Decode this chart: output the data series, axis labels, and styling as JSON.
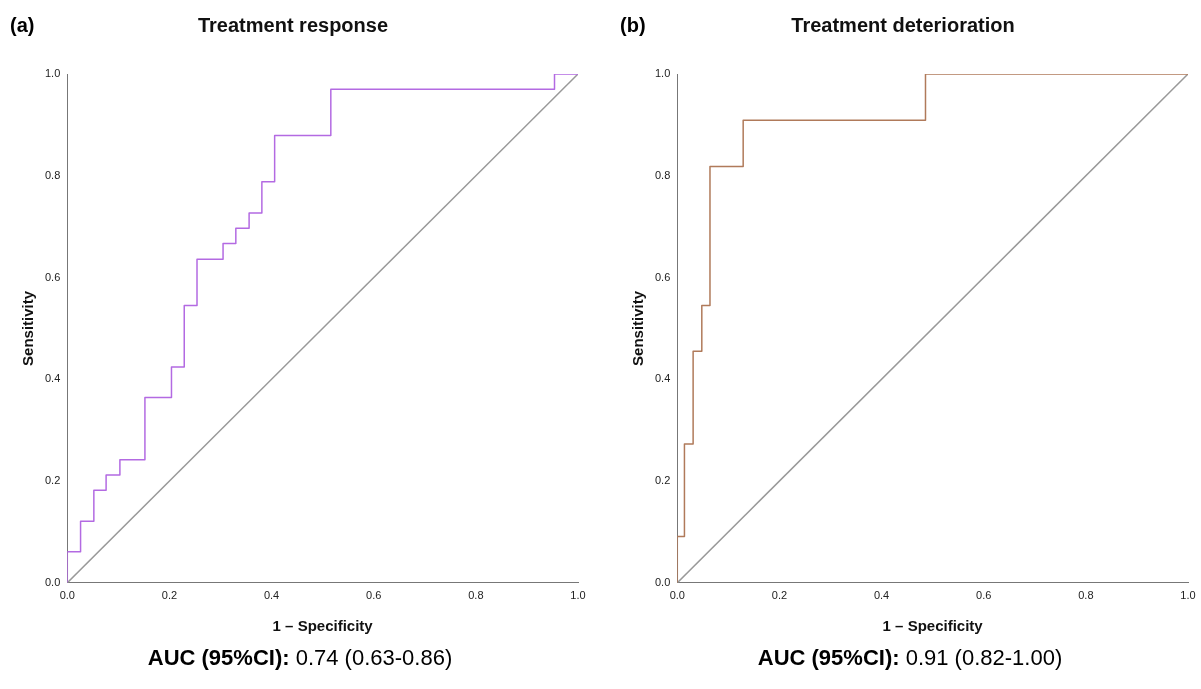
{
  "chart_data": [
    {
      "type": "line",
      "title": "Treatment response",
      "xlabel": "1 – Specificity",
      "ylabel": "Sensitivity",
      "xlim": [
        0,
        1
      ],
      "ylim": [
        0,
        1
      ],
      "xticks": [
        {
          "value": 0,
          "label": "0.0"
        },
        {
          "value": 0.2,
          "label": "0.2"
        },
        {
          "value": 0.4,
          "label": "0.4"
        },
        {
          "value": 0.6,
          "label": "0.6"
        },
        {
          "value": 0.8,
          "label": "0.8"
        },
        {
          "value": 1,
          "label": "1.0"
        }
      ],
      "yticks": [
        {
          "value": 0,
          "label": "0.0"
        },
        {
          "value": 0.2,
          "label": "0.2"
        },
        {
          "value": 0.4,
          "label": "0.4"
        },
        {
          "value": 0.6,
          "label": "0.6"
        },
        {
          "value": 0.8,
          "label": "0.8"
        },
        {
          "value": 1,
          "label": "1.0"
        }
      ],
      "marker": "none",
      "line_style": "solid",
      "series": [
        {
          "color": "#b36ae2",
          "x": [
            0,
            0,
            0.026,
            0.026,
            0.052,
            0.052,
            0.076,
            0.076,
            0.103,
            0.103,
            0.152,
            0.152,
            0.204,
            0.204,
            0.229,
            0.229,
            0.254,
            0.254,
            0.305,
            0.305,
            0.33,
            0.33,
            0.356,
            0.356,
            0.381,
            0.381,
            0.406,
            0.406,
            0.516,
            0.516,
            0.954,
            0.954,
            1
          ],
          "values": [
            0,
            0.061,
            0.061,
            0.121,
            0.121,
            0.182,
            0.182,
            0.212,
            0.212,
            0.242,
            0.242,
            0.364,
            0.364,
            0.424,
            0.424,
            0.545,
            0.545,
            0.636,
            0.636,
            0.667,
            0.667,
            0.697,
            0.697,
            0.727,
            0.727,
            0.788,
            0.788,
            0.879,
            0.879,
            0.97,
            0.97,
            1,
            1
          ]
        },
        {
          "color": "#999999",
          "x": [
            0,
            1
          ],
          "values": [
            0,
            1
          ]
        }
      ],
      "annotations": [
        "(a)",
        "AUC (95%CI): 0.74 (0.63-0.86)"
      ]
    },
    {
      "type": "line",
      "title": "Treatment deterioration",
      "xlabel": "1 – Specificity",
      "ylabel": "Sensitivity",
      "xlim": [
        0,
        1
      ],
      "ylim": [
        0,
        1
      ],
      "xticks": [
        {
          "value": 0,
          "label": "0.0"
        },
        {
          "value": 0.2,
          "label": "0.2"
        },
        {
          "value": 0.4,
          "label": "0.4"
        },
        {
          "value": 0.6,
          "label": "0.6"
        },
        {
          "value": 0.8,
          "label": "0.8"
        },
        {
          "value": 1,
          "label": "1.0"
        }
      ],
      "yticks": [
        {
          "value": 0,
          "label": "0.0"
        },
        {
          "value": 0.2,
          "label": "0.2"
        },
        {
          "value": 0.4,
          "label": "0.4"
        },
        {
          "value": 0.6,
          "label": "0.6"
        },
        {
          "value": 0.8,
          "label": "0.8"
        },
        {
          "value": 1,
          "label": "1.0"
        }
      ],
      "marker": "none",
      "line_style": "solid",
      "series": [
        {
          "color": "#b07a5a",
          "x": [
            0,
            0,
            0.014,
            0.014,
            0.031,
            0.031,
            0.048,
            0.048,
            0.064,
            0.064,
            0.129,
            0.129,
            0.486,
            0.486,
            1
          ],
          "values": [
            0,
            0.091,
            0.091,
            0.273,
            0.273,
            0.455,
            0.455,
            0.545,
            0.545,
            0.818,
            0.818,
            0.909,
            0.909,
            1,
            1
          ]
        },
        {
          "color": "#999999",
          "x": [
            0,
            1
          ],
          "values": [
            0,
            1
          ]
        }
      ],
      "annotations": [
        "(b)",
        "AUC (95%CI): 0.91 (0.82-1.00)"
      ]
    }
  ]
}
